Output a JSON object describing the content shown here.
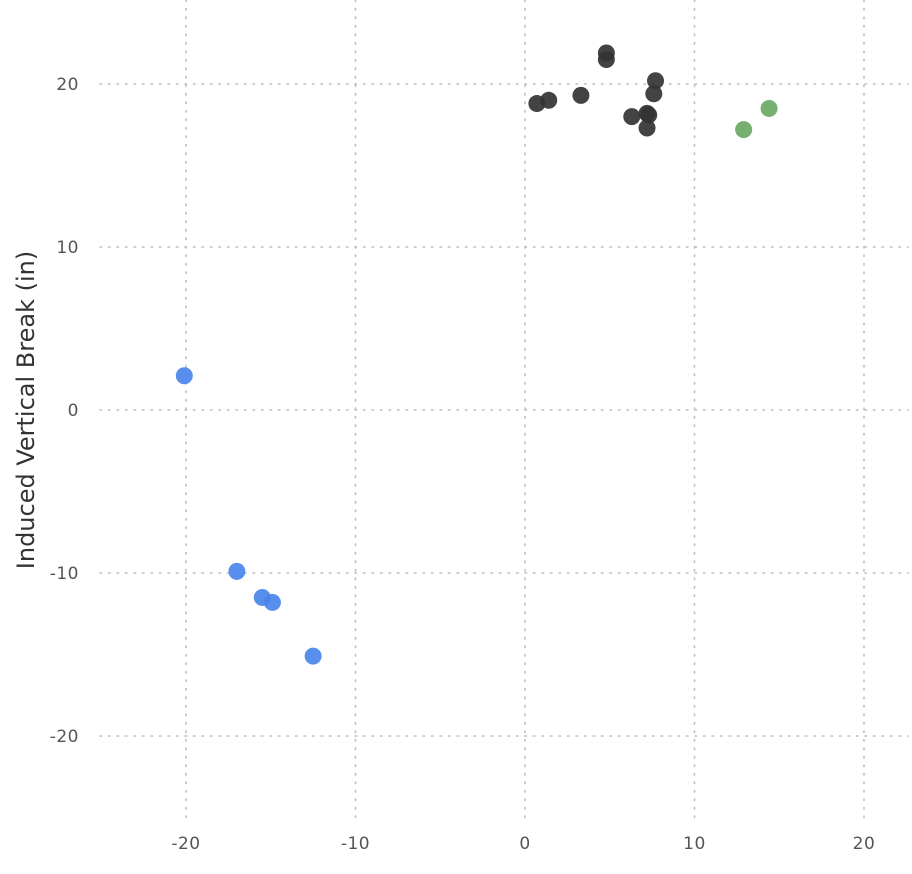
{
  "chart_data": {
    "type": "scatter",
    "title": "",
    "xlabel": "",
    "ylabel": "Induced Vertical Break (in)",
    "xlim": [
      -25,
      22.5
    ],
    "ylim": [
      -25,
      25
    ],
    "x_ticks": [
      -20,
      -10,
      0,
      10,
      20
    ],
    "y_ticks": [
      20,
      10,
      0,
      -10,
      -20
    ],
    "x_tick_labels": [
      "-20",
      "-10",
      "0",
      "10",
      "20"
    ],
    "y_tick_labels": [
      "20",
      "10",
      "0",
      "-10",
      "-20"
    ],
    "grid": true,
    "legend": "none",
    "series": [
      {
        "color": "#333333",
        "points": [
          {
            "x": 4.8,
            "y": 21.9
          },
          {
            "x": 4.8,
            "y": 21.5
          },
          {
            "x": 7.7,
            "y": 20.2
          },
          {
            "x": 7.6,
            "y": 19.4
          },
          {
            "x": 3.3,
            "y": 19.3
          },
          {
            "x": 1.4,
            "y": 19.0
          },
          {
            "x": 0.7,
            "y": 18.8
          },
          {
            "x": 7.2,
            "y": 18.2
          },
          {
            "x": 7.3,
            "y": 18.1
          },
          {
            "x": 6.3,
            "y": 18.0
          },
          {
            "x": 7.2,
            "y": 17.3
          }
        ]
      },
      {
        "color": "#6aa863",
        "points": [
          {
            "x": 14.4,
            "y": 18.5
          },
          {
            "x": 12.9,
            "y": 17.2
          }
        ]
      },
      {
        "color": "#4a84ea",
        "points": [
          {
            "x": -20.1,
            "y": 2.1
          },
          {
            "x": -17.0,
            "y": -9.9
          },
          {
            "x": -15.5,
            "y": -11.5
          },
          {
            "x": -14.9,
            "y": -11.8
          },
          {
            "x": -12.5,
            "y": -15.1
          }
        ]
      }
    ]
  }
}
